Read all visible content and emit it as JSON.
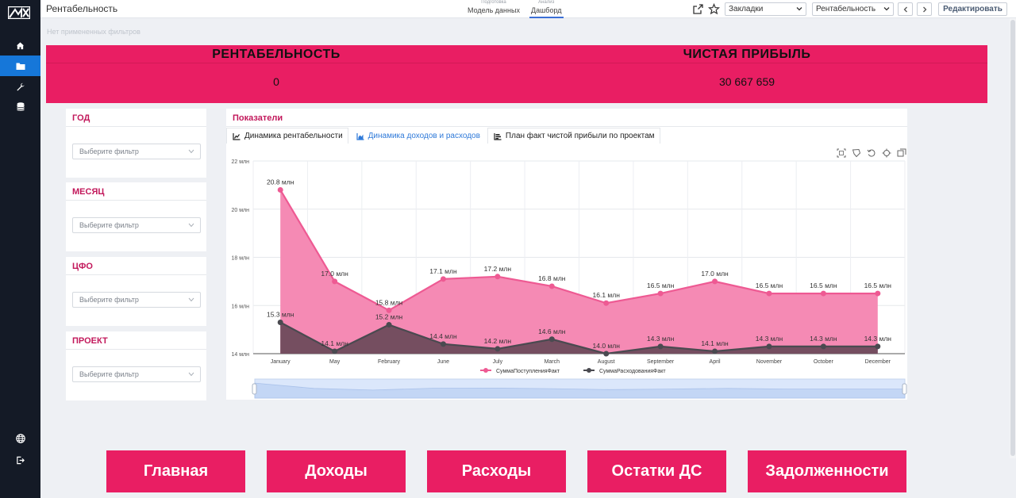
{
  "app": {
    "page_title": "Рентабельность",
    "filters_status": "Нет примененных фильтров"
  },
  "mode_tabs": [
    {
      "small": "Подготовка",
      "label": "Модель данных",
      "active": false
    },
    {
      "small": "Анализ",
      "label": "Дашборд",
      "active": true
    }
  ],
  "toolbar": {
    "bookmarks_value": "Закладки",
    "sheet_value": "Рентабельность",
    "edit_label": "Редактировать"
  },
  "kpi": [
    {
      "label": "РЕНТАБЕЛЬНОСТЬ",
      "value": "0"
    },
    {
      "label": "ЧИСТАЯ ПРИБЫЛЬ",
      "value": "30 667 659"
    }
  ],
  "filters": [
    {
      "title": "ГОД",
      "placeholder": "Выберите фильтр"
    },
    {
      "title": "МЕСЯЦ",
      "placeholder": "Выберите фильтр"
    },
    {
      "title": "ЦФО",
      "placeholder": "Выберите фильтр"
    },
    {
      "title": "ПРОЕКТ",
      "placeholder": "Выберите фильтр"
    }
  ],
  "panel": {
    "title": "Показатели",
    "tabs": [
      {
        "label": "Динамика рентабельности",
        "icon": "line-chart-icon",
        "active": false
      },
      {
        "label": "Динамика доходов и расходов",
        "icon": "area-chart-icon",
        "active": true
      },
      {
        "label": "План факт чистой прибыли по проектам",
        "icon": "bar-chart-icon",
        "active": false
      }
    ]
  },
  "chart_data": {
    "type": "area",
    "categories": [
      "January",
      "May",
      "February",
      "June",
      "July",
      "March",
      "August",
      "September",
      "April",
      "November",
      "October",
      "December"
    ],
    "y_ticks": [
      "14 млн",
      "16 млн",
      "18 млн",
      "20 млн",
      "22 млн"
    ],
    "ylim": [
      14,
      22
    ],
    "y_unit": "млн",
    "grid": true,
    "legend_position": "bottom",
    "series": [
      {
        "name": "СуммаПоступленияФакт",
        "color": "#ee5a93",
        "fill": "#f58ab4",
        "values": [
          20.8,
          17.0,
          15.8,
          17.1,
          17.2,
          16.8,
          16.1,
          16.5,
          17.0,
          16.5,
          16.5,
          16.5
        ],
        "labels": [
          "20.8 млн",
          "17.0 млн",
          "15.8 млн",
          "17.1 млн",
          "17.2 млн",
          "16.8 млн",
          "16.1 млн",
          "16.5 млн",
          "17.0 млн",
          "16.5 млн",
          "16.5 млн",
          "16.5 млн"
        ]
      },
      {
        "name": "СуммаРасходованияФакт",
        "color": "#4a4a50",
        "fill": "#6e4b5c",
        "values": [
          15.3,
          14.1,
          15.2,
          14.4,
          14.2,
          14.6,
          14.0,
          14.3,
          14.1,
          14.3,
          14.3,
          14.3
        ],
        "labels": [
          "15.3 млн",
          "14.1 млн",
          "15.2 млн",
          "14.4 млн",
          "14.2 млн",
          "14.6 млн",
          "14.0 млн",
          "14.3 млн",
          "14.1 млн",
          "14.3 млн",
          "14.3 млн",
          "14.3 млн"
        ]
      }
    ]
  },
  "bottom_nav": [
    {
      "label": "Главная"
    },
    {
      "label": "Доходы"
    },
    {
      "label": "Расходы"
    },
    {
      "label": "Остатки ДС"
    },
    {
      "label": "Задолженности"
    }
  ],
  "colors": {
    "accent": "#e91e63",
    "rail": "#141a26",
    "active_nav": "#1677d9",
    "link_blue": "#2f7ad9"
  }
}
